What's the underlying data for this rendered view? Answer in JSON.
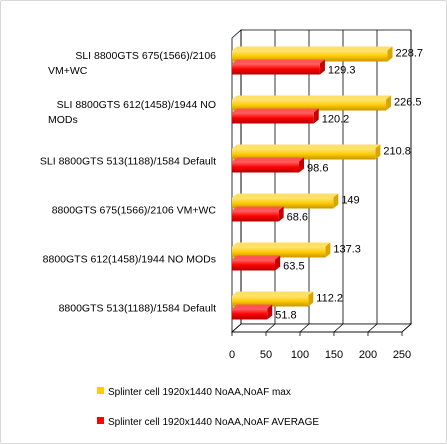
{
  "chart_data": {
    "type": "bar",
    "orientation": "horizontal",
    "categories": [
      [
        "SLI 8800GTS 675(1566)/2106",
        "VM+WC"
      ],
      [
        "SLI 8800GTS 612(1458)/1944 NO",
        "MODs"
      ],
      [
        "SLI 8800GTS 513(1188)/1584 Default"
      ],
      [
        "8800GTS 675(1566)/2106 VM+WC"
      ],
      [
        "8800GTS 612(1458)/1944 NO MODs"
      ],
      [
        "8800GTS 513(1188)/1584 Default"
      ]
    ],
    "series": [
      {
        "name": "Splinter cell 1920x1440 NoAA,NoAF max",
        "color": "#ffcc00",
        "values": [
          228.7,
          226.5,
          210.8,
          149,
          137.3,
          112.2
        ]
      },
      {
        "name": "Splinter cell 1920x1440 NoAA,NoAF AVERAGE",
        "color": "#ff0000",
        "values": [
          129.3,
          120.2,
          98.6,
          68.6,
          63.5,
          51.8
        ]
      }
    ],
    "xlim": [
      0,
      250
    ],
    "xticks": [
      0,
      50,
      100,
      150,
      200,
      250
    ],
    "grid": "vertical",
    "legend_position": "bottom",
    "title": "",
    "xlabel": "",
    "ylabel": ""
  }
}
